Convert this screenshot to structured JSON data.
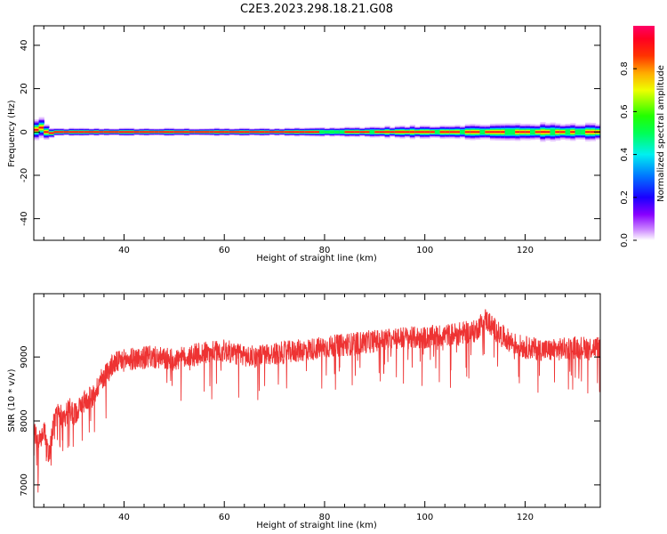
{
  "figure": {
    "title": "C2E3.2023.298.18.21.G08"
  },
  "chart_data": [
    {
      "type": "heatmap",
      "xlabel": "Height of straight line (km)",
      "ylabel": "Frequency (Hz)",
      "xlim": [
        22,
        135
      ],
      "ylim": [
        -50,
        49
      ],
      "xticks": [
        40,
        60,
        80,
        100,
        120
      ],
      "yticks": [
        -40,
        -20,
        0,
        20,
        40
      ],
      "ytick_labels": [
        "-40",
        "-20",
        "0",
        "20",
        "40"
      ],
      "colorbar": {
        "label": "Normalized spectral amplitude",
        "range": [
          0,
          1
        ],
        "ticks": [
          0.0,
          0.2,
          0.4,
          0.6,
          0.8
        ],
        "tick_labels": [
          "0.0",
          "0.2",
          "0.4",
          "0.6",
          "0.8"
        ],
        "colormap": "gist_rainbow_r"
      },
      "ridge": {
        "x": [
          22.5,
          23,
          24,
          25,
          26,
          30,
          40,
          50,
          60,
          70,
          80,
          90,
          100,
          110,
          120,
          130,
          134
        ],
        "center_hz": [
          1,
          3,
          1,
          -1,
          0,
          0,
          0,
          0,
          0,
          0,
          0,
          0,
          0,
          0,
          0,
          0,
          0
        ],
        "halfwidth_hz": [
          4,
          5,
          4,
          2,
          1.5,
          1.5,
          1.5,
          1.5,
          1.5,
          1.5,
          2,
          2.5,
          3,
          3.5,
          4,
          4,
          4
        ]
      }
    },
    {
      "type": "line",
      "xlabel": "Height of straight line (km)",
      "ylabel": "SNR (10 * v/v)",
      "xlim": [
        22,
        135
      ],
      "ylim": [
        6650,
        9990
      ],
      "xticks": [
        40,
        60,
        80,
        100,
        120
      ],
      "yticks": [
        7000,
        8000,
        9000
      ],
      "color": "#ee3333",
      "series": [
        {
          "x": [
            22,
            23,
            24,
            25,
            26,
            27,
            28,
            29,
            30,
            32,
            34,
            35,
            36,
            37,
            38,
            40,
            45,
            50,
            55,
            60,
            65,
            70,
            75,
            80,
            85,
            90,
            95,
            100,
            105,
            110,
            112,
            115,
            118,
            120,
            125,
            130,
            135
          ],
          "y": [
            7900,
            7650,
            7900,
            7400,
            8000,
            8150,
            8000,
            8200,
            8100,
            8300,
            8400,
            8600,
            8700,
            8800,
            8900,
            8950,
            9000,
            8950,
            9050,
            9100,
            9000,
            9050,
            9100,
            9150,
            9200,
            9250,
            9300,
            9300,
            9350,
            9400,
            9600,
            9350,
            9200,
            9150,
            9100,
            9150,
            9150
          ],
          "noise_amplitude": 180
        }
      ]
    }
  ]
}
